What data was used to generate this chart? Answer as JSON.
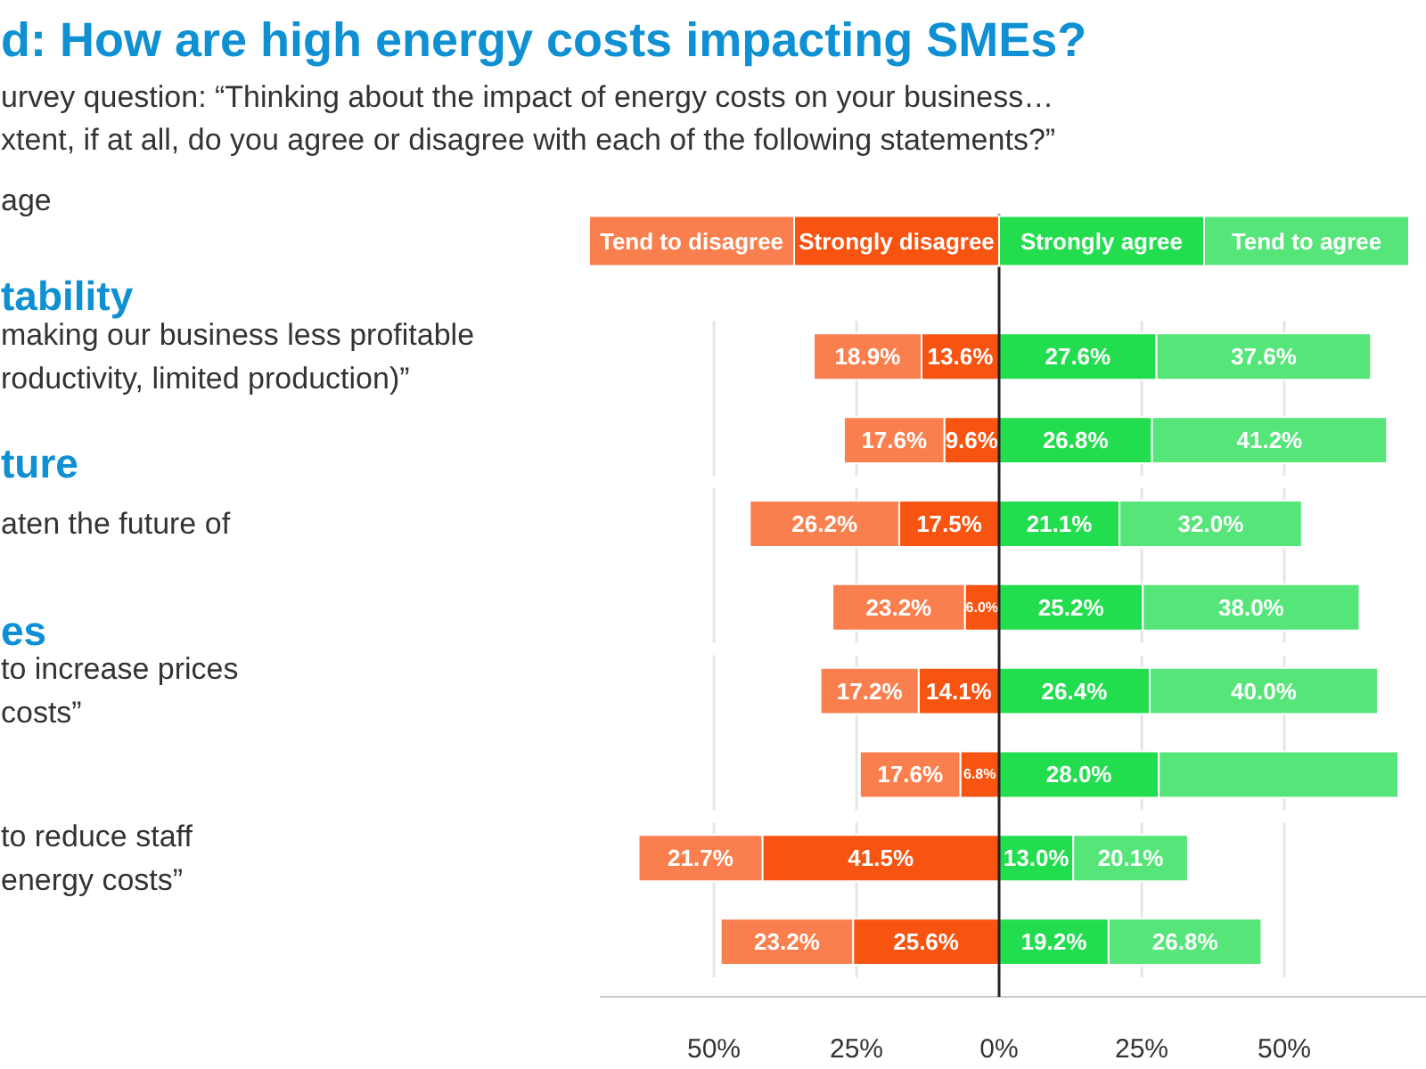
{
  "chart_data": {
    "type": "bar",
    "orientation": "horizontal",
    "title": "d: How are high energy costs impacting SMEs?",
    "subtitle": "urvey question: “Thinking about the impact of energy costs on your business…\nxtent, if at all, do you agree or disagree with each of the following statements?”",
    "annotations": [
      "age",
      "tability",
      "ture",
      "es"
    ],
    "categories": [
      "making our business less profitable\nroductivity, limited production)”",
      null,
      "aten the future of",
      null,
      "to increase prices\n costs”",
      null,
      "to reduce staff\nenergy costs”",
      null
    ],
    "series": [
      {
        "name": "Strongly disagree",
        "color": "#f75311",
        "values": [
          13.6,
          9.6,
          17.5,
          6.0,
          14.1,
          6.8,
          41.5,
          25.6
        ],
        "base": [
          -13.6,
          -9.6,
          -17.5,
          -6.0,
          -14.1,
          -6.8,
          -41.5,
          -25.6
        ],
        "value_labels": [
          "13.6%",
          "9.6%",
          "17.5%",
          "6.0%",
          "14.1%",
          "6.8%",
          "41.5%",
          "25.6%"
        ]
      },
      {
        "name": "Tend to disagree",
        "color": "#fa7f4e",
        "values": [
          18.9,
          17.6,
          26.2,
          23.2,
          17.2,
          17.6,
          21.7,
          23.2
        ],
        "base": [
          -32.5,
          -27.2,
          -43.7,
          -29.2,
          -31.3,
          -24.4,
          -63.2,
          -48.8
        ],
        "value_labels": [
          "18.9%",
          "17.6%",
          "26.2%",
          "23.2%",
          "17.2%",
          "17.6%",
          "21.7%",
          "23.2%"
        ]
      },
      {
        "name": "Strongly agree",
        "color": "#22dd4e",
        "values": [
          27.6,
          26.8,
          21.1,
          25.2,
          26.4,
          28.0,
          13.0,
          19.2
        ],
        "base": [
          0,
          0,
          0,
          0,
          0,
          0,
          0,
          0
        ],
        "value_labels": [
          "27.6%",
          "26.8%",
          "21.1%",
          "25.2%",
          "26.4%",
          "28.0%",
          "13.0%",
          "19.2%"
        ]
      },
      {
        "name": "Tend to agree",
        "color": "#55e579",
        "values": [
          37.6,
          41.2,
          32.0,
          38.0,
          40.0,
          42.0,
          20.1,
          26.8
        ],
        "base": [
          27.6,
          26.8,
          21.1,
          25.2,
          26.4,
          28.0,
          13.0,
          19.2
        ],
        "value_labels": [
          "37.6%",
          "41.2%",
          "32.0%",
          "38.0%",
          "40.0%",
          null,
          "20.1%",
          "26.8%"
        ]
      }
    ],
    "xlim": [
      -70,
      75
    ],
    "xticks": [
      {
        "value": -50,
        "label": "50%"
      },
      {
        "value": -25,
        "label": "25%"
      },
      {
        "value": 0,
        "label": "0%"
      },
      {
        "value": 25,
        "label": "25%"
      },
      {
        "value": 50,
        "label": "50%"
      }
    ],
    "ref_lines": [
      {
        "axis": "x",
        "value": 0,
        "color": "#222222"
      }
    ],
    "grid": "x",
    "legend": "top"
  }
}
